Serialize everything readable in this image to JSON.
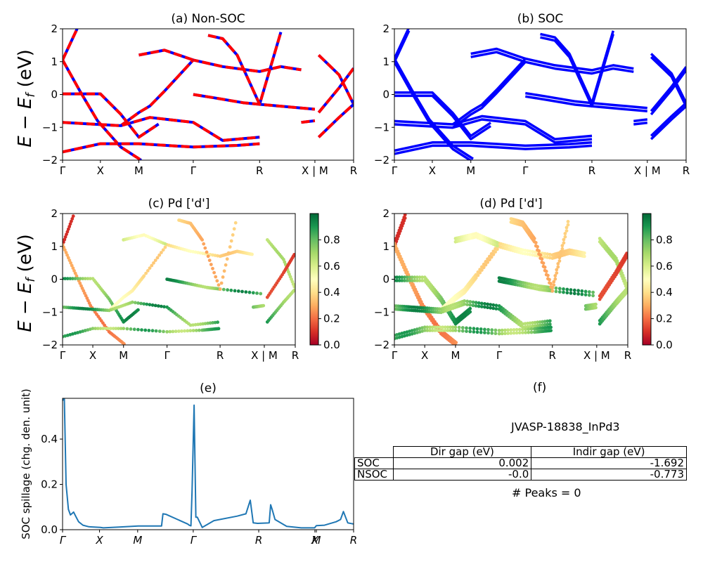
{
  "figure": {
    "ylabel_bands": "E − E_f (eV)",
    "kpath_labels": [
      "Γ",
      "X",
      "M",
      "Γ",
      "R",
      "X | M",
      "R"
    ],
    "kpath_positions": [
      0,
      0.13,
      0.262,
      0.449,
      0.677,
      0.867,
      1.0
    ]
  },
  "chart_data": [
    {
      "id": "a",
      "type": "line",
      "title": "(a) Non-SOC",
      "xlabel": "",
      "ylabel": "E − E_f (eV)",
      "ylim": [
        -2,
        2
      ],
      "yticks": [
        -2,
        -1,
        0,
        1,
        2
      ],
      "xtick_labels": [
        "Γ",
        "X",
        "M",
        "Γ",
        "R",
        "X | M",
        "R"
      ],
      "series_style": "red line with blue dashes overlay",
      "colors": {
        "base": "#0000ff",
        "overlay": "#ff0000"
      },
      "bands_approx": [
        {
          "x": [
            0,
            0.05
          ],
          "y": [
            1.05,
            2.0
          ]
        },
        {
          "x": [
            0,
            0.06,
            0.12,
            0.2,
            0.27
          ],
          "y": [
            1.05,
            0.1,
            -0.8,
            -1.6,
            -2.0
          ]
        },
        {
          "x": [
            0,
            0.13,
            0.2,
            0.262,
            0.33
          ],
          "y": [
            0.02,
            0.02,
            -0.6,
            -1.3,
            -0.9
          ]
        },
        {
          "x": [
            0.2,
            0.262,
            0.3,
            0.35,
            0.449,
            0.55,
            0.677,
            0.75,
            0.82
          ],
          "y": [
            -0.95,
            -0.55,
            -0.35,
            0.1,
            1.05,
            0.85,
            0.7,
            0.85,
            0.75
          ]
        },
        {
          "x": [
            0.262,
            0.35,
            0.449
          ],
          "y": [
            1.2,
            1.35,
            1.05
          ]
        },
        {
          "x": [
            0.449,
            0.52,
            0.62,
            0.677,
            0.867
          ],
          "y": [
            0.0,
            -0.1,
            -0.25,
            -0.3,
            -0.45
          ]
        },
        {
          "x": [
            0,
            0.1,
            0.2,
            0.3,
            0.449,
            0.55,
            0.677
          ],
          "y": [
            -0.85,
            -0.9,
            -0.95,
            -0.7,
            -0.85,
            -1.4,
            -1.3
          ]
        },
        {
          "x": [
            0,
            0.13,
            0.262,
            0.449,
            0.6,
            0.677
          ],
          "y": [
            -1.75,
            -1.5,
            -1.5,
            -1.6,
            -1.55,
            -1.5
          ]
        },
        {
          "x": [
            0.88,
            0.95,
            1.0
          ],
          "y": [
            1.2,
            0.6,
            -0.3
          ]
        },
        {
          "x": [
            0.88,
            0.95,
            1.0
          ],
          "y": [
            -0.55,
            0.2,
            0.8
          ]
        },
        {
          "x": [
            0.88,
            0.95,
            1.0
          ],
          "y": [
            -1.3,
            -0.7,
            -0.3
          ]
        },
        {
          "x": [
            0.5,
            0.55,
            0.6,
            0.677,
            0.75
          ],
          "y": [
            1.8,
            1.7,
            1.2,
            -0.3,
            1.9
          ]
        },
        {
          "x": [
            0.82,
            0.867
          ],
          "y": [
            -0.85,
            -0.8
          ]
        }
      ]
    },
    {
      "id": "b",
      "type": "line",
      "title": "(b) SOC",
      "xlabel": "",
      "ylabel": "",
      "ylim": [
        -2,
        2
      ],
      "yticks": [
        -2,
        -1,
        0,
        1,
        2
      ],
      "xtick_labels": [
        "Γ",
        "X",
        "M",
        "Γ",
        "R",
        "X | M",
        "R"
      ],
      "colors": {
        "base": "#0000ff"
      },
      "bands_approx": "same as (a) with spin-orbit splitting, doubled lines"
    },
    {
      "id": "c",
      "type": "scatter",
      "title": "(c)  Pd ['d']",
      "ylim": [
        -2,
        2
      ],
      "yticks": [
        -2,
        -1,
        0,
        1,
        2
      ],
      "xtick_labels": [
        "Γ",
        "X",
        "M",
        "Γ",
        "R",
        "X | M",
        "R"
      ],
      "colorbar": {
        "cmap": "RdYlGn",
        "range": [
          0,
          1
        ],
        "ticks": [
          0.0,
          0.2,
          0.4,
          0.6,
          0.8
        ]
      }
    },
    {
      "id": "d",
      "type": "scatter",
      "title": "(d) Pd ['d']",
      "ylim": [
        -2,
        2
      ],
      "yticks": [
        -2,
        -1,
        0,
        1,
        2
      ],
      "xtick_labels": [
        "Γ",
        "X",
        "M",
        "Γ",
        "R",
        "X | M",
        "R"
      ],
      "colorbar": {
        "cmap": "RdYlGn",
        "range": [
          0,
          1
        ],
        "ticks": [
          0.0,
          0.2,
          0.4,
          0.6,
          0.8
        ]
      }
    },
    {
      "id": "e",
      "type": "line",
      "title": "(e)",
      "xlabel": "",
      "ylabel": "SOC spillage (chg. den. unit)",
      "ylim": [
        0,
        0.58
      ],
      "yticks": [
        0.0,
        0.2,
        0.4
      ],
      "xtick_labels": [
        "Γ",
        "X",
        "M",
        "Γ",
        "R",
        "X",
        "M",
        "R"
      ],
      "xtick_positions": [
        0,
        0.127,
        0.258,
        0.449,
        0.674,
        0.867,
        0.872,
        1.0
      ],
      "color": "#1f77b4",
      "x": [
        0,
        0.006,
        0.012,
        0.02,
        0.027,
        0.033,
        0.038,
        0.045,
        0.055,
        0.07,
        0.09,
        0.13,
        0.14,
        0.2,
        0.26,
        0.34,
        0.345,
        0.355,
        0.43,
        0.435,
        0.441,
        0.445,
        0.452,
        0.458,
        0.463,
        0.48,
        0.52,
        0.6,
        0.63,
        0.645,
        0.655,
        0.67,
        0.71,
        0.715,
        0.72,
        0.73,
        0.77,
        0.82,
        0.866,
        0.872,
        0.9,
        0.94,
        0.955,
        0.965,
        0.98,
        1.0
      ],
      "y": [
        0.57,
        0.58,
        0.2,
        0.09,
        0.065,
        0.072,
        0.078,
        0.06,
        0.035,
        0.02,
        0.013,
        0.01,
        0.008,
        0.012,
        0.016,
        0.016,
        0.07,
        0.068,
        0.025,
        0.02,
        0.017,
        0.17,
        0.55,
        0.055,
        0.055,
        0.01,
        0.04,
        0.06,
        0.07,
        0.13,
        0.03,
        0.028,
        0.03,
        0.11,
        0.09,
        0.045,
        0.015,
        0.008,
        0.008,
        0.018,
        0.02,
        0.035,
        0.045,
        0.08,
        0.03,
        0.025
      ]
    }
  ],
  "table_panel": {
    "title": "(f)",
    "material_id": "JVASP-18838_InPd3",
    "columns": [
      "",
      "Dir gap (eV)",
      "Indir gap (eV)"
    ],
    "rows": [
      {
        "label": "SOC",
        "dir_gap": "0.002",
        "indir_gap": "-1.692"
      },
      {
        "label": "NSOC",
        "dir_gap": "-0.0",
        "indir_gap": "-0.773"
      }
    ],
    "peaks_text": "# Peaks = 0"
  }
}
